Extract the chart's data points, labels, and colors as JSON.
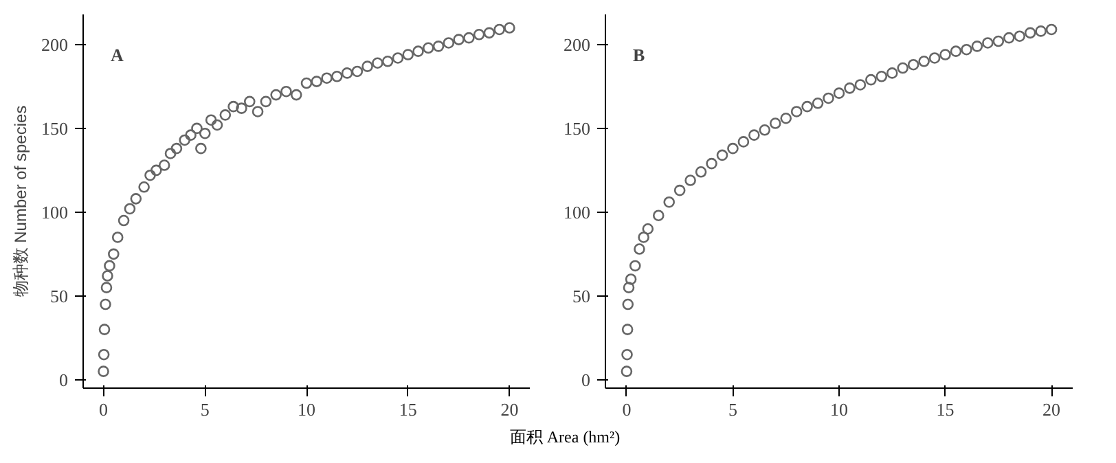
{
  "chart_data": [
    {
      "type": "scatter",
      "title": "A",
      "ylabel": "物种数 Number of species",
      "xlabel": "面积 Area (hm²)",
      "marker": "circle",
      "grid": false,
      "xlim": [
        -1,
        21
      ],
      "ylim": [
        -5,
        218
      ],
      "xticks": [
        0,
        5,
        10,
        15,
        20
      ],
      "yticks": [
        0,
        50,
        100,
        150,
        200
      ],
      "series": [
        {
          "color": "#666666",
          "x": [
            0,
            0.02,
            0.05,
            0.1,
            0.15,
            0.2,
            0.3,
            0.5,
            0.7,
            1,
            1.3,
            1.6,
            2,
            2.3,
            2.6,
            3,
            3.3,
            3.6,
            4,
            4.3,
            4.6,
            4.8,
            5,
            5.3,
            5.6,
            6,
            6.4,
            6.8,
            7.2,
            7.6,
            8,
            8.5,
            9,
            9.5,
            10,
            10.5,
            11,
            11.5,
            12,
            12.5,
            13,
            13.5,
            14,
            14.5,
            15,
            15.5,
            16,
            16.5,
            17,
            17.5,
            18,
            18.5,
            19,
            19.5,
            20
          ],
          "values": [
            5,
            15,
            30,
            45,
            55,
            62,
            68,
            75,
            85,
            95,
            102,
            108,
            115,
            122,
            125,
            128,
            135,
            138,
            143,
            146,
            150,
            138,
            147,
            155,
            152,
            158,
            163,
            162,
            166,
            160,
            166,
            170,
            172,
            170,
            177,
            178,
            180,
            181,
            183,
            184,
            187,
            189,
            190,
            192,
            194,
            196,
            198,
            199,
            201,
            203,
            204,
            206,
            207,
            209,
            210
          ]
        }
      ]
    },
    {
      "type": "scatter",
      "title": "B",
      "marker": "circle",
      "grid": false,
      "xlim": [
        -1,
        21
      ],
      "ylim": [
        -5,
        218
      ],
      "xticks": [
        0,
        5,
        10,
        15,
        20
      ],
      "yticks": [
        0,
        50,
        100,
        150,
        200
      ],
      "series": [
        {
          "color": "#666666",
          "x": [
            0,
            0.02,
            0.04,
            0.06,
            0.1,
            0.2,
            0.4,
            0.6,
            0.8,
            1,
            1.5,
            2,
            2.5,
            3,
            3.5,
            4,
            4.5,
            5,
            5.5,
            6,
            6.5,
            7,
            7.5,
            8,
            8.5,
            9,
            9.5,
            10,
            10.5,
            11,
            11.5,
            12,
            12.5,
            13,
            13.5,
            14,
            14.5,
            15,
            15.5,
            16,
            16.5,
            17,
            17.5,
            18,
            18.5,
            19,
            19.5,
            20
          ],
          "values": [
            5,
            15,
            30,
            45,
            55,
            60,
            68,
            78,
            85,
            90,
            98,
            106,
            113,
            119,
            124,
            129,
            134,
            138,
            142,
            146,
            149,
            153,
            156,
            160,
            163,
            165,
            168,
            171,
            174,
            176,
            179,
            181,
            183,
            186,
            188,
            190,
            192,
            194,
            196,
            197,
            199,
            201,
            202,
            204,
            205,
            207,
            208,
            209
          ]
        }
      ]
    }
  ]
}
